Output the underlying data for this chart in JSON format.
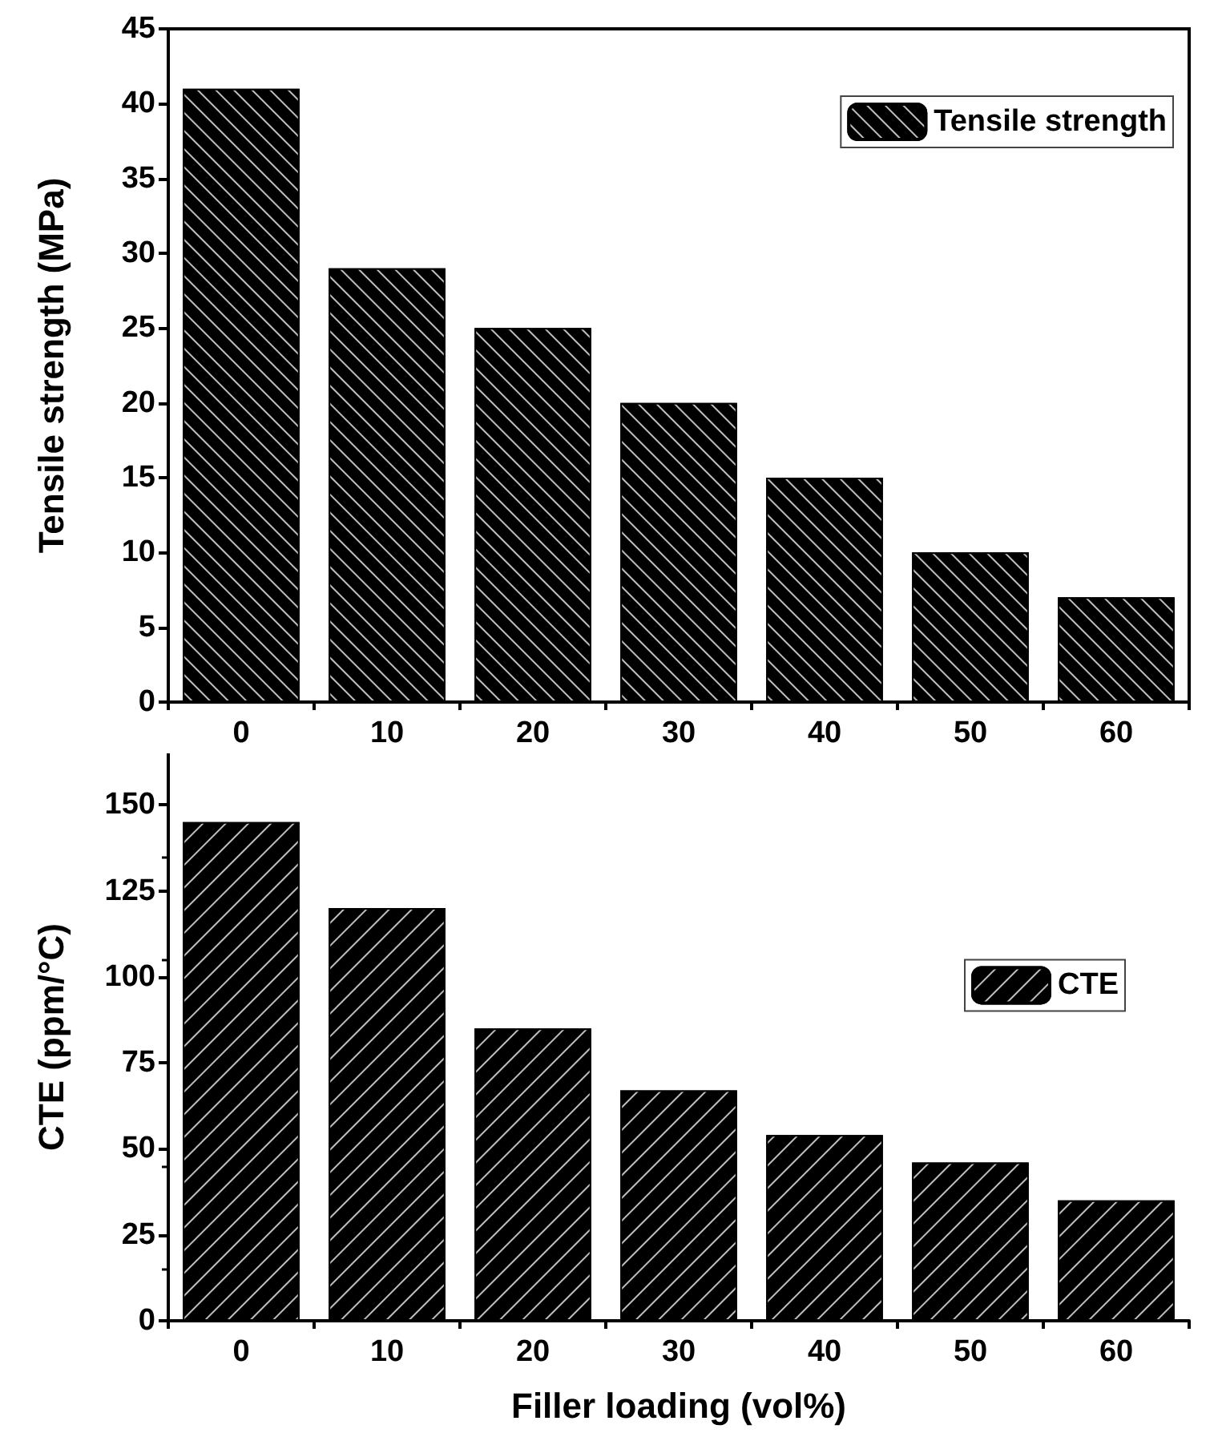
{
  "chart_data": [
    {
      "type": "bar",
      "categories": [
        "0",
        "10",
        "20",
        "30",
        "40",
        "50",
        "60"
      ],
      "ylabel": "Tensile strength (MPa)",
      "ylim": [
        0,
        45
      ],
      "yticks": [
        0,
        5,
        10,
        15,
        20,
        25,
        30,
        35,
        40,
        45
      ],
      "legend": "top right",
      "grid": false,
      "series": [
        {
          "name": "Tensile strength",
          "color": "#000000",
          "values": [
            41,
            29,
            25,
            20,
            15,
            10,
            7
          ]
        }
      ]
    },
    {
      "type": "bar",
      "categories": [
        "0",
        "10",
        "20",
        "30",
        "40",
        "50",
        "60"
      ],
      "xlabel": "Filler loading (vol%)",
      "ylabel": "CTE (ppm/°C)",
      "ylim": [
        0,
        165
      ],
      "yticks": [
        0,
        25,
        50,
        75,
        100,
        125,
        150
      ],
      "legend": "right",
      "grid": false,
      "series": [
        {
          "name": "CTE",
          "color": "#000000",
          "values": [
            145,
            120,
            85,
            67,
            54,
            46,
            35
          ]
        }
      ]
    }
  ]
}
